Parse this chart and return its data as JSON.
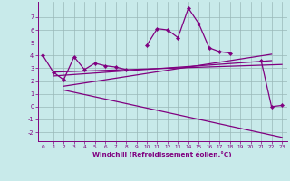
{
  "background_color": "#c8eaea",
  "grid_color": "#9ab8b8",
  "line_color": "#800080",
  "xlabel": "Windchill (Refroidissement éolien,°C)",
  "xlim": [
    -0.5,
    23.5
  ],
  "ylim": [
    -2.7,
    8.2
  ],
  "yticks": [
    -2,
    -1,
    0,
    1,
    2,
    3,
    4,
    5,
    6,
    7
  ],
  "xticks": [
    0,
    1,
    2,
    3,
    4,
    5,
    6,
    7,
    8,
    9,
    10,
    11,
    12,
    13,
    14,
    15,
    16,
    17,
    18,
    19,
    20,
    21,
    22,
    23
  ],
  "data_line": [
    4.0,
    2.7,
    2.1,
    3.9,
    2.9,
    3.4,
    3.2,
    3.1,
    2.9,
    null,
    4.8,
    6.1,
    6.0,
    5.4,
    7.7,
    6.5,
    4.6,
    4.3,
    4.2,
    null,
    null,
    3.6,
    0.0,
    0.1
  ],
  "trend_line1_x": [
    1,
    23
  ],
  "trend_line1_y": [
    2.7,
    3.3
  ],
  "trend_line2_x": [
    1,
    22
  ],
  "trend_line2_y": [
    2.4,
    3.6
  ],
  "trend_line3_x": [
    2,
    22
  ],
  "trend_line3_y": [
    1.6,
    4.1
  ],
  "trend_line4_x": [
    2,
    23
  ],
  "trend_line4_y": [
    1.3,
    -2.4
  ]
}
